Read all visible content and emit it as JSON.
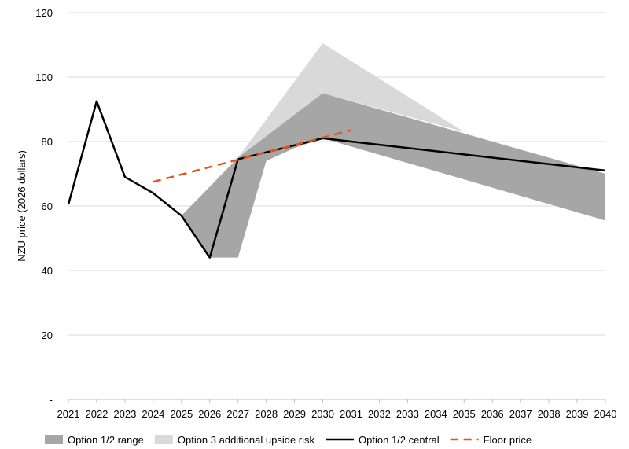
{
  "chart_data": {
    "type": "line",
    "ylabel": "NZU price (2026 dollars)",
    "xlabel": "",
    "ylim": [
      0,
      120
    ],
    "y_ticks": [
      {
        "value": 0,
        "label": "-"
      },
      {
        "value": 20,
        "label": "20"
      },
      {
        "value": 40,
        "label": "40"
      },
      {
        "value": 60,
        "label": "60"
      },
      {
        "value": 80,
        "label": "80"
      },
      {
        "value": 100,
        "label": "100"
      },
      {
        "value": 120,
        "label": "120"
      }
    ],
    "categories": [
      "2021",
      "2022",
      "2023",
      "2024",
      "2025",
      "2026",
      "2027",
      "2028",
      "2029",
      "2030",
      "2031",
      "2032",
      "2033",
      "2034",
      "2035",
      "2036",
      "2037",
      "2038",
      "2039",
      "2040"
    ],
    "grid": true,
    "legend_position": "bottom",
    "series": [
      {
        "name": "Option 1/2 range",
        "kind": "band",
        "color": "#a6a6a6",
        "upper": [
          [
            2025,
            57
          ],
          [
            2027,
            75
          ],
          [
            2030,
            95
          ],
          [
            2040,
            70
          ]
        ],
        "lower": [
          [
            2025,
            57
          ],
          [
            2026,
            44
          ],
          [
            2027,
            44
          ],
          [
            2028,
            74
          ],
          [
            2029,
            78
          ],
          [
            2030,
            81
          ],
          [
            2040,
            55.5
          ]
        ]
      },
      {
        "name": "Option 3 additional upside risk",
        "kind": "band",
        "color": "#d9d9d9",
        "upper": [
          [
            2027,
            75
          ],
          [
            2030,
            110.5
          ],
          [
            2035,
            83
          ]
        ],
        "lower": [
          [
            2027,
            75
          ],
          [
            2030,
            95
          ],
          [
            2035,
            83
          ]
        ]
      },
      {
        "name": "Option 1/2 central",
        "kind": "line",
        "color": "#000000",
        "points": [
          [
            2021,
            60.5
          ],
          [
            2022,
            92.5
          ],
          [
            2023,
            69
          ],
          [
            2024,
            64
          ],
          [
            2025,
            57
          ],
          [
            2026,
            44
          ],
          [
            2027,
            74.5
          ],
          [
            2030,
            81
          ],
          [
            2040,
            71
          ]
        ]
      },
      {
        "name": "Floor price",
        "kind": "dashed",
        "color": "#e0561a",
        "points": [
          [
            2024,
            67.5
          ],
          [
            2031,
            83.5
          ]
        ]
      }
    ]
  }
}
